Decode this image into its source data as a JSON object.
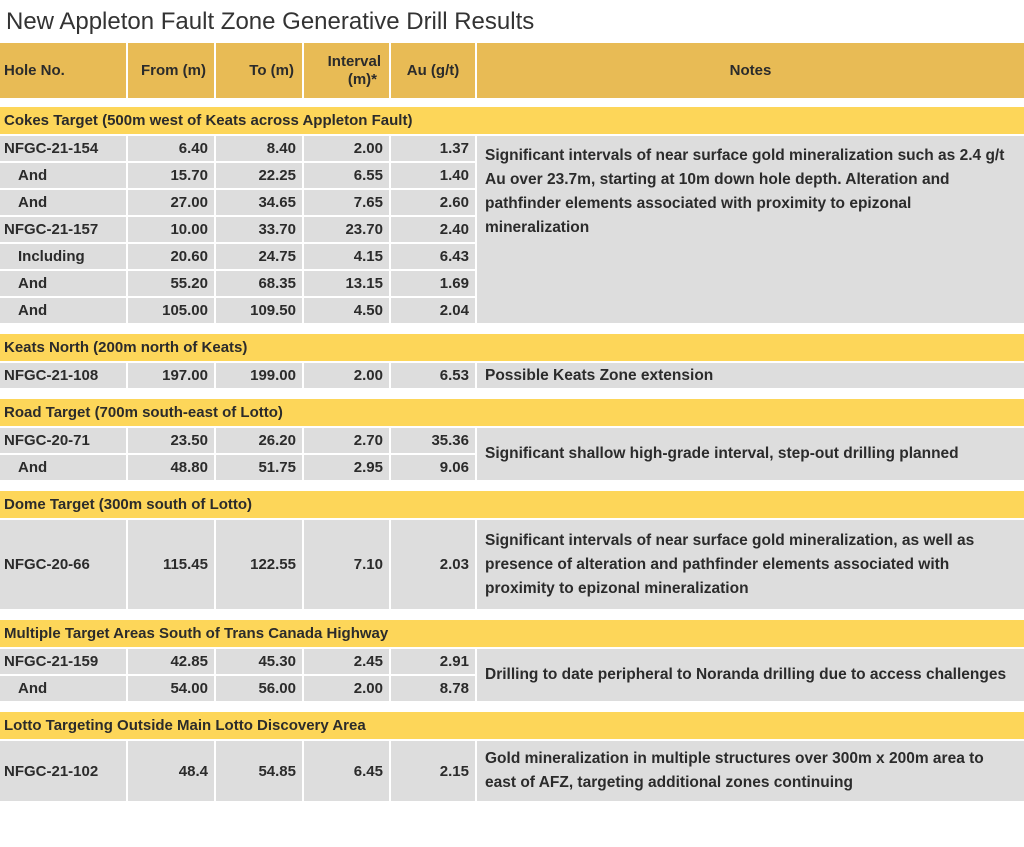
{
  "title": "New Appleton Fault Zone Generative Drill Results",
  "header": {
    "hole": "Hole No.",
    "from": "From (m)",
    "to": "To (m)",
    "interval_line1": "Interval",
    "interval_line2": "(m)*",
    "au": "Au (g/t)",
    "notes": "Notes"
  },
  "sections": [
    {
      "title": "Cokes Target (500m west of Keats across Appleton Fault)",
      "note": "Significant intervals of near surface gold mineralization such as 2.4 g/t Au over 23.7m, starting at 10m down hole depth. Alteration and pathfinder elements associated with proximity to epizonal mineralization",
      "rows": [
        {
          "hole": "NFGC-21-154",
          "from": "6.40",
          "to": "8.40",
          "interval": "2.00",
          "au": "1.37"
        },
        {
          "hole": "And",
          "from": "15.70",
          "to": "22.25",
          "interval": "6.55",
          "au": "1.40"
        },
        {
          "hole": "And",
          "from": "27.00",
          "to": "34.65",
          "interval": "7.65",
          "au": "2.60"
        },
        {
          "hole": "NFGC-21-157",
          "from": "10.00",
          "to": "33.70",
          "interval": "23.70",
          "au": "2.40"
        },
        {
          "hole": "Including",
          "from": "20.60",
          "to": "24.75",
          "interval": "4.15",
          "au": "6.43"
        },
        {
          "hole": "And",
          "from": "55.20",
          "to": "68.35",
          "interval": "13.15",
          "au": "1.69"
        },
        {
          "hole": "And",
          "from": "105.00",
          "to": "109.50",
          "interval": "4.50",
          "au": "2.04"
        }
      ]
    },
    {
      "title": "Keats North (200m north of Keats)",
      "note": "Possible Keats Zone extension",
      "rows": [
        {
          "hole": "NFGC-21-108",
          "from": "197.00",
          "to": "199.00",
          "interval": "2.00",
          "au": "6.53"
        }
      ]
    },
    {
      "title": "Road Target (700m south-east of Lotto)",
      "note": "Significant shallow high-grade interval, step-out drilling planned",
      "rows": [
        {
          "hole": "NFGC-20-71",
          "from": "23.50",
          "to": "26.20",
          "interval": "2.70",
          "au": "35.36"
        },
        {
          "hole": "And",
          "from": "48.80",
          "to": "51.75",
          "interval": "2.95",
          "au": "9.06"
        }
      ]
    },
    {
      "title": "Dome Target (300m south of Lotto)",
      "note": "Significant intervals of near surface gold mineralization, as well as presence of alteration and pathfinder elements associated with proximity to epizonal mineralization",
      "rows": [
        {
          "hole": "NFGC-20-66",
          "from": "115.45",
          "to": "122.55",
          "interval": "7.10",
          "au": "2.03"
        }
      ]
    },
    {
      "title": "Multiple Target Areas South of Trans Canada Highway",
      "note": "Drilling to date peripheral to Noranda drilling due to access challenges",
      "rows": [
        {
          "hole": "NFGC-21-159",
          "from": "42.85",
          "to": "45.30",
          "interval": "2.45",
          "au": "2.91"
        },
        {
          "hole": "And",
          "from": "54.00",
          "to": "56.00",
          "interval": "2.00",
          "au": "8.78"
        }
      ]
    },
    {
      "title": "Lotto Targeting Outside Main Lotto Discovery Area",
      "note": "Gold mineralization in multiple structures over 300m x 200m area to east of AFZ, targeting additional zones continuing",
      "rows": [
        {
          "hole": "NFGC-21-102",
          "from": "48.4",
          "to": "54.85",
          "interval": "6.45",
          "au": "2.15"
        }
      ]
    }
  ]
}
